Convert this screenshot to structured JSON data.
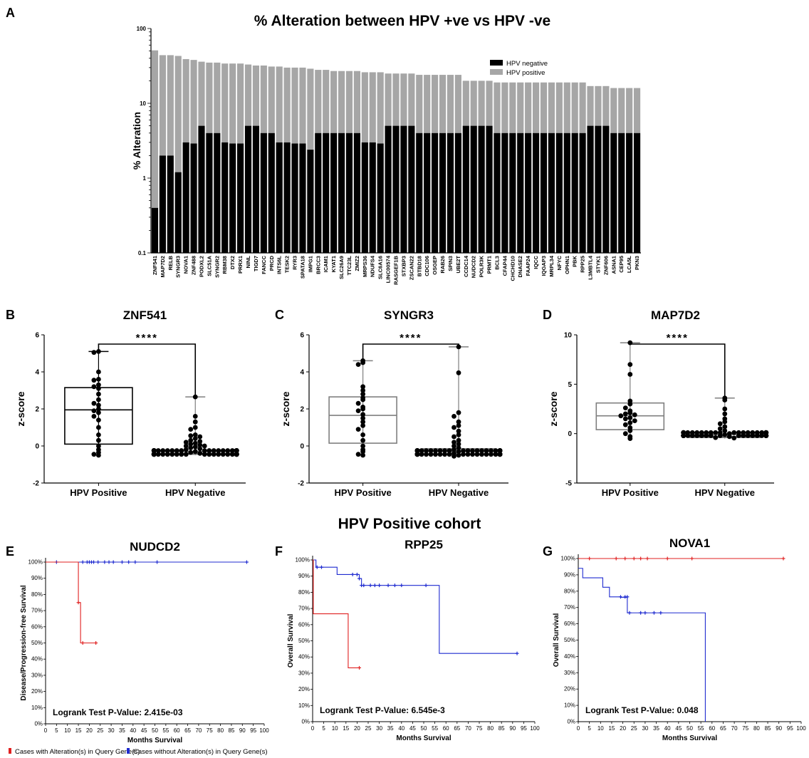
{
  "panel_letters": [
    "A",
    "B",
    "C",
    "D",
    "E",
    "F",
    "G"
  ],
  "cohort_title": "HPV Positive cohort",
  "colors": {
    "hpv_negative": "#000000",
    "hpv_positive": "#a6a6a6",
    "altered": "#e02020",
    "unaltered": "#1f2bd0"
  },
  "chart_data": [
    {
      "id": "A",
      "type": "bar",
      "stacked": true,
      "title": "% Alteration between HPV +ve vs HPV -ve",
      "ylabel": "% Alteration",
      "yscale": "log",
      "ylim": [
        0.1,
        100
      ],
      "yticks": [
        "0.1",
        "1",
        "10",
        "100"
      ],
      "legend_position": "top-right",
      "categories": [
        "ZNF541",
        "MAP7D2",
        "RELB",
        "SYNGR3",
        "NOVA1",
        "ZNF488",
        "PODXL2",
        "SLC51A",
        "SYNGR2",
        "RBM38",
        "DTX2",
        "PRRX1",
        "NINL",
        "TIGD7",
        "FANCC",
        "PRCD",
        "INTS6L",
        "TESK2",
        "RYR3",
        "SPATA18",
        "IMPG1",
        "BRCC3",
        "ICAM1",
        "KYAT1",
        "SLC26A9",
        "TTC23L",
        "ZMIZ2",
        "MRPS36",
        "NDUFS4",
        "SLC6A16",
        "LINC00574",
        "RASGEF1B",
        "STXBP3",
        "ZSCAN22",
        "BTBD18",
        "CDC106",
        "OSGEP",
        "RAB26",
        "SPIN3",
        "UBE2T",
        "CCDC14",
        "NUDCD2",
        "POLR3K",
        "PRMT1",
        "BCL3",
        "CFAP44",
        "CHCHD10",
        "DNASE2",
        "FAAP24",
        "IQCC",
        "IQGAP3",
        "MRPL34",
        "NFYC",
        "OPHN1",
        "PBK",
        "RPP25",
        "L3MBTL4",
        "STYK1",
        "ZNF606",
        "ASNA1",
        "CEP95",
        "LCA5L",
        "PKN3"
      ],
      "series": [
        {
          "name": "HPV negative",
          "values": [
            0.4,
            2.0,
            2.0,
            1.2,
            3.0,
            2.9,
            5.0,
            4.0,
            4.0,
            3.0,
            2.9,
            2.9,
            5.0,
            5.0,
            4.0,
            4.0,
            3.0,
            3.0,
            2.9,
            2.9,
            2.4,
            4.0,
            4.0,
            4.0,
            4.0,
            4.0,
            4.0,
            3.0,
            3.0,
            2.9,
            5.0,
            5.0,
            5.0,
            5.0,
            4.0,
            4.0,
            4.0,
            4.0,
            4.0,
            4.0,
            5.0,
            5.0,
            5.0,
            5.0,
            4.0,
            4.0,
            4.0,
            4.0,
            4.0,
            4.0,
            4.0,
            4.0,
            4.0,
            4.0,
            4.0,
            4.0,
            5.0,
            5.0,
            5.0,
            4.0,
            4.0,
            4.0,
            4.0
          ]
        },
        {
          "name": "HPV positive",
          "values": [
            51,
            44,
            44,
            43,
            39,
            38,
            36,
            35,
            35,
            34,
            34,
            34,
            33,
            32,
            32,
            31,
            31,
            30,
            30,
            30,
            29,
            28,
            28,
            27,
            27,
            27,
            27,
            26,
            26,
            26,
            25,
            25,
            25,
            25,
            24,
            24,
            24,
            24,
            24,
            24,
            20,
            20,
            20,
            20,
            19,
            19,
            19,
            19,
            19,
            19,
            19,
            19,
            19,
            19,
            19,
            19,
            17,
            17,
            17,
            16,
            16,
            16,
            16
          ]
        }
      ]
    },
    {
      "id": "B",
      "type": "box",
      "title": "ZNF541",
      "ylabel": "z-score",
      "ylim": [
        -2,
        6
      ],
      "yticks": [
        "-2",
        "0",
        "2",
        "4",
        "6"
      ],
      "categories": [
        "HPV Positive",
        "HPV Negative"
      ],
      "significance": "****",
      "boxes": [
        {
          "q1": 0.1,
          "median": 1.95,
          "q3": 3.15,
          "whisker_low": -0.5,
          "whisker_high": 5.1,
          "points": [
            5.1,
            5.05,
            4.0,
            3.6,
            3.55,
            3.3,
            3.2,
            3.1,
            2.8,
            2.5,
            2.3,
            2.2,
            2.0,
            1.9,
            1.8,
            1.6,
            1.4,
            1.0,
            0.6,
            0.3,
            0.0,
            -0.2,
            -0.35,
            -0.45,
            -0.5
          ]
        },
        {
          "q1": -0.45,
          "median": -0.4,
          "q3": -0.3,
          "whisker_low": -0.5,
          "whisker_high": 2.65,
          "points": [
            2.65,
            1.6,
            1.3,
            1.0,
            0.9,
            0.6,
            0.55,
            0.5,
            0.4,
            0.3,
            0.25,
            0.2,
            0.15,
            0.1,
            0.05,
            0.0,
            0.0,
            -0.05,
            -0.1,
            -0.15,
            -0.2,
            -0.25,
            -0.3,
            -0.35,
            -0.4,
            -0.45
          ]
        }
      ]
    },
    {
      "id": "C",
      "type": "box",
      "title": "SYNGR3",
      "ylabel": "z-score",
      "ylim": [
        -2,
        6
      ],
      "yticks": [
        "-2",
        "0",
        "2",
        "4",
        "6"
      ],
      "categories": [
        "HPV Positive",
        "HPV Negative"
      ],
      "significance": "****",
      "boxes": [
        {
          "q1": 0.15,
          "median": 1.65,
          "q3": 2.65,
          "whisker_low": -0.5,
          "whisker_high": 4.6,
          "points": [
            4.6,
            4.5,
            4.4,
            3.2,
            3.0,
            2.8,
            2.6,
            2.5,
            2.3,
            2.1,
            2.0,
            1.9,
            1.7,
            1.5,
            1.3,
            1.1,
            0.9,
            0.6,
            0.3,
            0.0,
            -0.2,
            -0.3,
            -0.45,
            -0.5
          ]
        },
        {
          "q1": -0.45,
          "median": -0.3,
          "q3": -0.15,
          "whisker_low": -0.6,
          "whisker_high": 5.35,
          "points": [
            5.35,
            3.95,
            1.8,
            1.6,
            1.3,
            1.1,
            1.0,
            0.8,
            0.6,
            0.5,
            0.3,
            0.2,
            0.1,
            0.0,
            -0.1,
            -0.2,
            -0.3,
            -0.4,
            -0.5,
            -0.55
          ]
        }
      ]
    },
    {
      "id": "D",
      "type": "box",
      "title": "MAP7D2",
      "ylabel": "z-score",
      "ylim": [
        -5,
        10
      ],
      "yticks": [
        "-5",
        "0",
        "5",
        "10"
      ],
      "categories": [
        "HPV Positive",
        "HPV Negative"
      ],
      "significance": "****",
      "boxes": [
        {
          "q1": 0.4,
          "median": 1.8,
          "q3": 3.1,
          "whisker_low": -0.5,
          "whisker_high": 9.2,
          "points": [
            9.2,
            7.0,
            6.0,
            3.3,
            3.0,
            2.6,
            2.3,
            2.1,
            2.0,
            1.9,
            1.8,
            1.6,
            1.5,
            1.3,
            1.1,
            0.9,
            0.6,
            0.3,
            0.0,
            -0.3,
            -0.5
          ]
        },
        {
          "q1": -0.4,
          "median": -0.3,
          "q3": -0.1,
          "whisker_low": -0.5,
          "whisker_high": 3.6,
          "points": [
            3.6,
            3.4,
            2.5,
            2.0,
            1.5,
            1.2,
            1.0,
            0.7,
            0.5,
            0.3,
            0.1,
            0.0,
            -0.1,
            -0.2,
            -0.3,
            -0.4,
            -0.45
          ]
        }
      ]
    },
    {
      "id": "E",
      "type": "line",
      "subtype": "kaplan-meier",
      "title": "NUDCD2",
      "ylabel": "Disease/Progression-free Survival",
      "xlabel": "Months Survival",
      "xlim": [
        0,
        100
      ],
      "ylim": [
        0,
        100
      ],
      "xtick_step": 5,
      "ytick_step": 10,
      "pvalue": "Logrank Test P-Value: 2.415e-03",
      "series": [
        {
          "name": "Cases without Alteration(s) in Query Gene(s)",
          "color": "#1f2bd0",
          "steps": [
            [
              0,
              100
            ],
            [
              92,
              100
            ]
          ],
          "censored": [
            [
              5,
              100
            ],
            [
              17,
              100
            ],
            [
              19,
              100
            ],
            [
              20,
              100
            ],
            [
              21,
              100
            ],
            [
              22,
              100
            ],
            [
              24,
              100
            ],
            [
              27,
              100
            ],
            [
              29,
              100
            ],
            [
              31,
              100
            ],
            [
              35,
              100
            ],
            [
              38,
              100
            ],
            [
              41,
              100
            ],
            [
              51,
              100
            ],
            [
              92,
              100
            ]
          ]
        },
        {
          "name": "Cases with Alteration(s) in Query Gene(s)",
          "color": "#e02020",
          "steps": [
            [
              0,
              100
            ],
            [
              15,
              100
            ],
            [
              15,
              75
            ],
            [
              16,
              75
            ],
            [
              16,
              50
            ],
            [
              23,
              50
            ]
          ],
          "censored": [
            [
              15,
              75
            ],
            [
              17,
              50
            ],
            [
              23,
              50
            ]
          ]
        }
      ]
    },
    {
      "id": "F",
      "type": "line",
      "subtype": "kaplan-meier",
      "title": "RPP25",
      "ylabel": "Overall Survival",
      "xlabel": "Months Survival",
      "xlim": [
        0,
        100
      ],
      "ylim": [
        0,
        100
      ],
      "xtick_step": 5,
      "ytick_step": 10,
      "pvalue": "Logrank Test P-Value: 6.545e-3",
      "series": [
        {
          "name": "Cases without Alteration(s) in Query Gene(s)",
          "color": "#1f2bd0",
          "steps": [
            [
              0,
              100
            ],
            [
              1.5,
              100
            ],
            [
              1.5,
              95.5
            ],
            [
              11,
              95.5
            ],
            [
              11,
              91
            ],
            [
              21,
              91
            ],
            [
              21,
              88.5
            ],
            [
              22,
              88.5
            ],
            [
              22,
              84.3
            ],
            [
              57,
              84.3
            ],
            [
              57,
              42.2
            ],
            [
              92,
              42.2
            ]
          ],
          "censored": [
            [
              2,
              95.5
            ],
            [
              4,
              95.5
            ],
            [
              18,
              91
            ],
            [
              20,
              91
            ],
            [
              21,
              88.5
            ],
            [
              22,
              84.3
            ],
            [
              23,
              84.3
            ],
            [
              26,
              84.3
            ],
            [
              28,
              84.3
            ],
            [
              30,
              84.3
            ],
            [
              34,
              84.3
            ],
            [
              37,
              84.3
            ],
            [
              40,
              84.3
            ],
            [
              51,
              84.3
            ],
            [
              92,
              42.2
            ]
          ]
        },
        {
          "name": "Cases with Alteration(s) in Query Gene(s)",
          "color": "#e02020",
          "steps": [
            [
              0,
              100
            ],
            [
              0.3,
              100
            ],
            [
              0.3,
              66.7
            ],
            [
              16,
              66.7
            ],
            [
              16,
              33.3
            ],
            [
              21,
              33.3
            ]
          ],
          "censored": [
            [
              21,
              33.3
            ]
          ]
        }
      ]
    },
    {
      "id": "G",
      "type": "line",
      "subtype": "kaplan-meier",
      "title": "NOVA1",
      "ylabel": "Overall Survival",
      "xlabel": "Months Survival",
      "xlim": [
        0,
        100
      ],
      "ylim": [
        0,
        100
      ],
      "xtick_step": 5,
      "ytick_step": 10,
      "pvalue": "Logrank Test P-Value: 0.048",
      "series": [
        {
          "name": "Cases with Alteration(s) in Query Gene(s)",
          "color": "#e02020",
          "steps": [
            [
              0,
              100
            ],
            [
              92,
              100
            ]
          ],
          "censored": [
            [
              5,
              100
            ],
            [
              17,
              100
            ],
            [
              21,
              100
            ],
            [
              25,
              100
            ],
            [
              28,
              100
            ],
            [
              31,
              100
            ],
            [
              40,
              100
            ],
            [
              51,
              100
            ],
            [
              92,
              100
            ]
          ]
        },
        {
          "name": "Cases without Alteration(s) in Query Gene(s)",
          "color": "#1f2bd0",
          "steps": [
            [
              0,
              94
            ],
            [
              2,
              94
            ],
            [
              2,
              88.2
            ],
            [
              11,
              88.2
            ],
            [
              11,
              82.4
            ],
            [
              14,
              82.4
            ],
            [
              14,
              76.5
            ],
            [
              19,
              76.5
            ],
            [
              19,
              76.2
            ],
            [
              22,
              76.2
            ],
            [
              22,
              66.7
            ],
            [
              57,
              66.7
            ],
            [
              57,
              0
            ]
          ],
          "censored": [
            [
              19,
              76.5
            ],
            [
              21,
              76.5
            ],
            [
              22,
              76.5
            ],
            [
              23,
              66.7
            ],
            [
              28,
              66.7
            ],
            [
              30,
              66.7
            ],
            [
              34,
              66.7
            ],
            [
              37,
              66.7
            ]
          ]
        }
      ]
    }
  ],
  "km_legend": [
    {
      "label": "Cases with Alteration(s) in Query Gene(s)",
      "color": "#e02020"
    },
    {
      "label": "Cases without Alteration(s) in Query Gene(s)",
      "color": "#1f2bd0"
    }
  ]
}
